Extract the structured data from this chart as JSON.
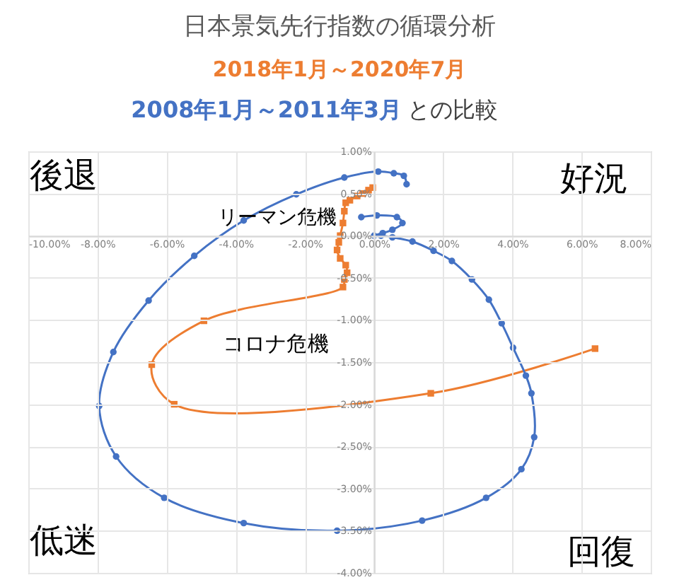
{
  "chart_data": {
    "type": "line",
    "title": "日本景気先行指数の循環分析",
    "subtitle": "との比較",
    "xlim": [
      -10,
      8
    ],
    "ylim": [
      -4,
      1
    ],
    "xticks": [
      {
        "value": -10,
        "label": "-10.00%"
      },
      {
        "value": -8,
        "label": "-8.00%"
      },
      {
        "value": -6,
        "label": "-6.00%"
      },
      {
        "value": -4,
        "label": "-4.00%"
      },
      {
        "value": -2,
        "label": "-2.00%"
      },
      {
        "value": 0,
        "label": "0.00%"
      },
      {
        "value": 2,
        "label": "2.00%"
      },
      {
        "value": 4,
        "label": "4.00%"
      },
      {
        "value": 6,
        "label": "6.00%"
      },
      {
        "value": 8,
        "label": "8.00%"
      }
    ],
    "yticks": [
      {
        "value": -4,
        "label": "-4.00%"
      },
      {
        "value": -3.5,
        "label": "-3.50%"
      },
      {
        "value": -3,
        "label": "-3.00%"
      },
      {
        "value": -2.5,
        "label": "-2.50%"
      },
      {
        "value": -2,
        "label": "-2.00%"
      },
      {
        "value": -1.5,
        "label": "-1.50%"
      },
      {
        "value": -1,
        "label": "-1.00%"
      },
      {
        "value": -0.5,
        "label": "-0.50%"
      },
      {
        "value": 0,
        "label": "0.00%"
      },
      {
        "value": 0.5,
        "label": "0.50%"
      },
      {
        "value": 1,
        "label": "1.00%"
      }
    ],
    "grid": true,
    "series": [
      {
        "name": "2018年1月～2020年7月",
        "color": "#ed7d31",
        "marker": "square",
        "x": [
          -0.04,
          -0.16,
          -0.33,
          -0.49,
          -0.7,
          -0.82,
          -0.86,
          -0.9,
          -0.98,
          -1.02,
          -1.07,
          -0.98,
          -0.82,
          -0.78,
          -0.86,
          -0.9,
          -4.92,
          -6.43,
          -5.78,
          1.64,
          6.39
        ],
        "values": [
          0.57,
          0.54,
          0.5,
          0.47,
          0.42,
          0.39,
          0.29,
          0.15,
          0.0,
          -0.08,
          -0.17,
          -0.27,
          -0.35,
          -0.44,
          -0.52,
          -0.61,
          -1.01,
          -1.53,
          -2.0,
          -1.87,
          -1.34
        ]
      },
      {
        "name": "2008年1月～2011年3月",
        "color": "#4472c4",
        "marker": "circle",
        "x": [
          0.94,
          0.86,
          0.57,
          0.12,
          -0.86,
          -2.25,
          -3.77,
          -5.2,
          -6.52,
          -7.54,
          -7.95,
          -7.46,
          -6.07,
          -3.77,
          -1.07,
          1.39,
          3.24,
          4.26,
          4.63,
          4.55,
          4.39,
          4.02,
          3.69,
          3.32,
          2.83,
          2.25,
          1.72,
          1.11,
          0.53,
          0.2,
          0.0,
          0.25,
          0.53,
          0.82,
          0.66,
          0.08,
          -0.37
        ],
        "values": [
          0.61,
          0.71,
          0.74,
          0.76,
          0.69,
          0.49,
          0.18,
          -0.24,
          -0.77,
          -1.38,
          -2.02,
          -2.62,
          -3.11,
          -3.41,
          -3.5,
          -3.38,
          -3.11,
          -2.77,
          -2.39,
          -1.87,
          -1.66,
          -1.33,
          -1.04,
          -0.76,
          -0.52,
          -0.3,
          -0.18,
          -0.07,
          -0.02,
          0.0,
          0.0,
          0.03,
          0.07,
          0.15,
          0.22,
          0.24,
          0.22
        ]
      }
    ],
    "annotations": [
      "後退",
      "好況",
      "低迷",
      "回復",
      "リーマン危機",
      "コロナ危機"
    ]
  }
}
